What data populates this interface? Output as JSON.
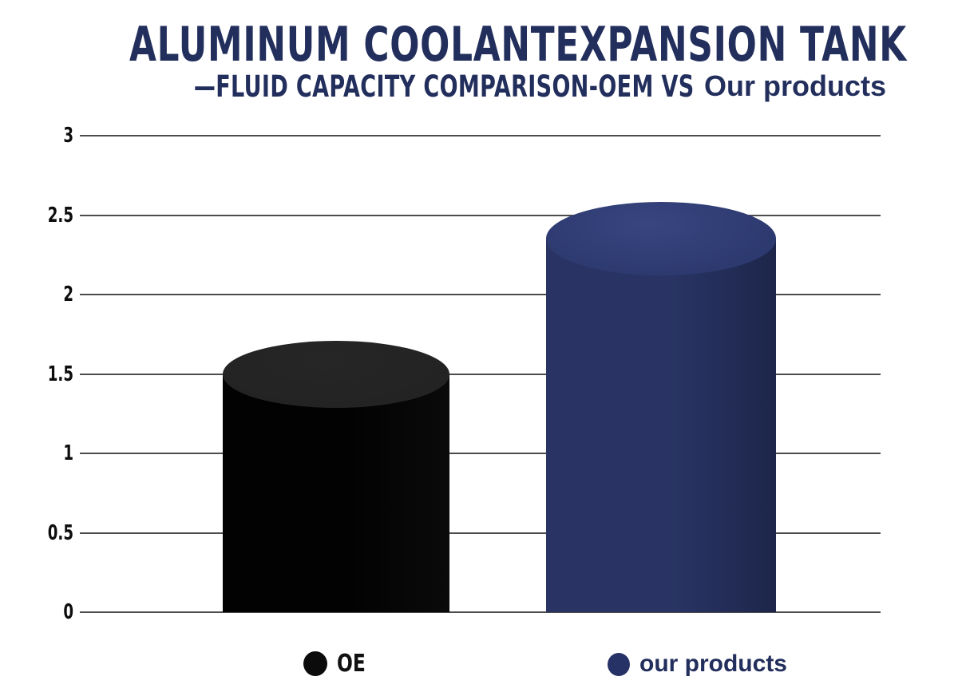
{
  "header": {
    "title": "ALUMINUM COOLANTEXPANSION TANK",
    "subtitle_condensed": "—FLUID CAPACITY COMPARISON-OEM VS",
    "subtitle_accent": "Our products"
  },
  "colors": {
    "background": "#ffffff",
    "title": "#222e5c",
    "subtitle": "#222e5c",
    "grid": "#4c4c4c",
    "tick_label": "#0d0d0d"
  },
  "legend": {
    "position": "bottom",
    "items": [
      {
        "label": "OE",
        "color": "#0b0b0b",
        "label_color": "#111111"
      },
      {
        "label": "our products",
        "color": "#263165",
        "label_color": "#222e5c"
      }
    ]
  },
  "chart_data": {
    "type": "bar",
    "style": "3d-cylinder",
    "title": "ALUMINUM COOLANTEXPANSION TANK",
    "subtitle": "—FLUID CAPACITY COMPARISON-OEM VS Our products",
    "categories": [
      "OE",
      "our products"
    ],
    "values": [
      1.5,
      2.35
    ],
    "series": [
      {
        "name": "OE",
        "value": 1.5,
        "color_body": "#020202",
        "color_body_edge": "#0a0a0a",
        "color_top": "#232323",
        "color_top_hi": "#262626"
      },
      {
        "name": "our products",
        "value": 2.35,
        "color_body": "#293464",
        "color_body_edge": "#1d264a",
        "color_top": "#2d3a70",
        "color_top_hi": "#38457f"
      }
    ],
    "xlabel": "",
    "ylabel": "",
    "ylim": [
      0,
      3
    ],
    "yticks": [
      0,
      0.5,
      1,
      1.5,
      2,
      2.5,
      3
    ],
    "ytick_labels": [
      "0",
      "0.5",
      "1",
      "1.5",
      "2",
      "2.5",
      "3"
    ],
    "grid": true,
    "legend_position": "bottom"
  }
}
